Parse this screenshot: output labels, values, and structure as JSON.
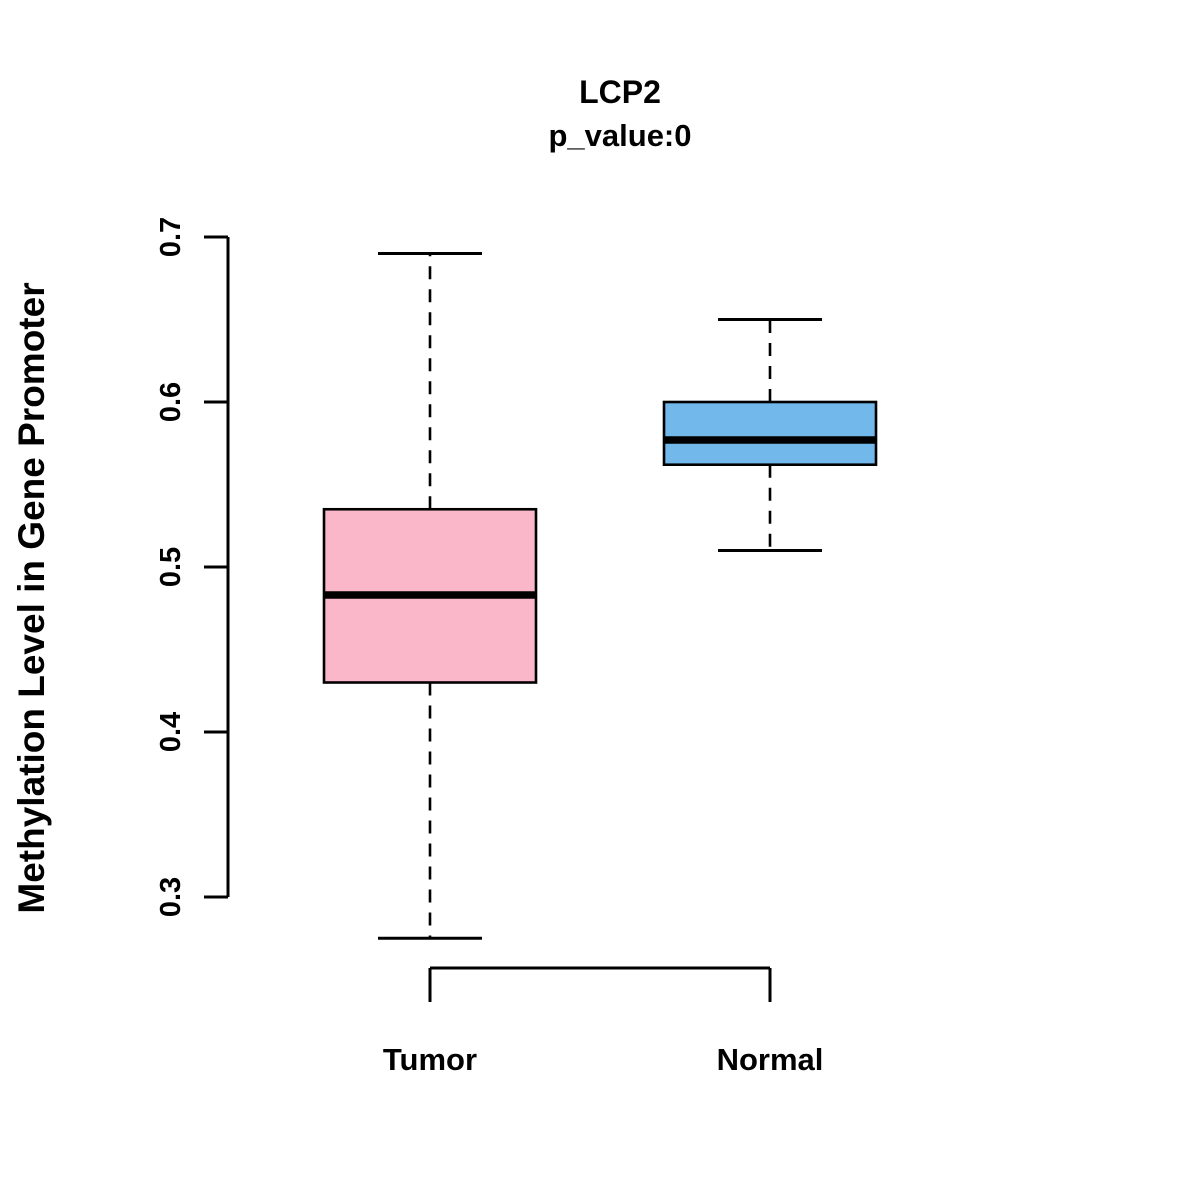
{
  "chart_data": {
    "type": "boxplot",
    "title": "LCP2",
    "subtitle": "p_value:0",
    "ylabel": "Methylation Level in Gene Promoter",
    "xlabel": "",
    "categories": [
      "Tumor",
      "Normal"
    ],
    "series": [
      {
        "name": "Tumor",
        "color": "#F9B7C9",
        "whisker_low": 0.275,
        "q1": 0.43,
        "median": 0.483,
        "q3": 0.535,
        "whisker_high": 0.69
      },
      {
        "name": "Normal",
        "color": "#72B8EB",
        "whisker_low": 0.51,
        "q1": 0.562,
        "median": 0.577,
        "q3": 0.6,
        "whisker_high": 0.65
      }
    ],
    "yticks": [
      0.3,
      0.4,
      0.5,
      0.6,
      0.7
    ],
    "ylim": [
      0.25,
      0.72
    ],
    "grid": false,
    "legend": "none"
  }
}
